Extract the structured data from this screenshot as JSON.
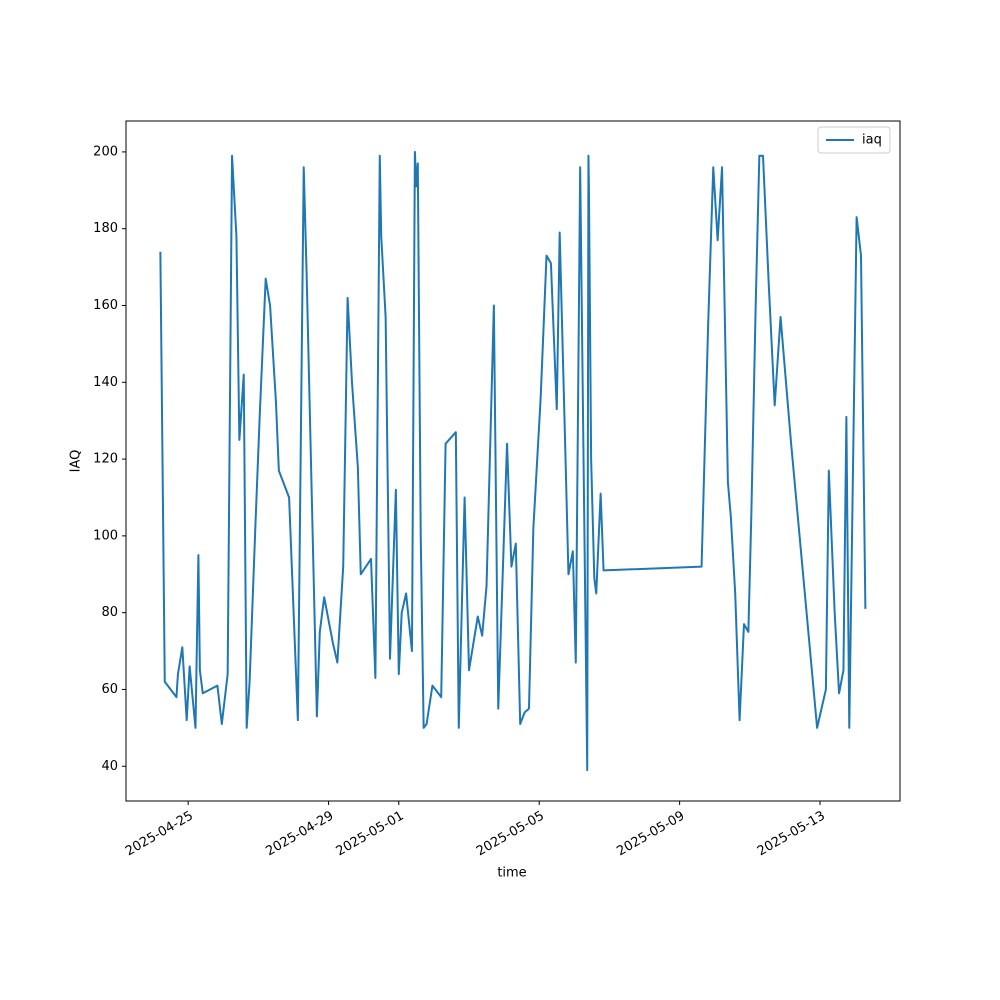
{
  "chart_data": {
    "type": "line",
    "xlabel": "time",
    "ylabel": "IAQ",
    "legend": "upper right",
    "xlim": [
      "2025-04-23T05:30",
      "2025-05-15T06:40"
    ],
    "xticks": [
      "2025-04-25",
      "2025-04-29",
      "2025-05-01",
      "2025-05-05",
      "2025-05-09",
      "2025-05-13"
    ],
    "ylim": [
      30.95,
      208.05
    ],
    "yticks": [
      40,
      60,
      80,
      100,
      120,
      140,
      160,
      180,
      200
    ],
    "x": [
      "2025-04-24T05:00",
      "2025-04-24T08:00",
      "2025-04-24T16:00",
      "2025-04-24T17:00",
      "2025-04-24T20:00",
      "2025-04-24T23:00",
      "2025-04-25T01:00",
      "2025-04-25T05:00",
      "2025-04-25T07:00",
      "2025-04-25T08:00",
      "2025-04-25T10:00",
      "2025-04-25T20:00",
      "2025-04-25T23:00",
      "2025-04-26T03:00",
      "2025-04-26T06:00",
      "2025-04-26T09:00",
      "2025-04-26T11:00",
      "2025-04-26T14:00",
      "2025-04-26T16:00",
      "2025-04-26T18:00",
      "2025-04-26T22:00",
      "2025-04-27T01:00",
      "2025-04-27T05:00",
      "2025-04-27T08:00",
      "2025-04-27T12:00",
      "2025-04-27T14:00",
      "2025-04-27T21:00",
      "2025-04-28T03:00",
      "2025-04-28T07:00",
      "2025-04-28T09:00",
      "2025-04-28T16:00",
      "2025-04-28T18:00",
      "2025-04-28T21:00",
      "2025-04-29T03:00",
      "2025-04-29T06:00",
      "2025-04-29T10:00",
      "2025-04-29T13:00",
      "2025-04-29T16:00",
      "2025-04-29T20:00",
      "2025-04-29T22:00",
      "2025-04-30T05:00",
      "2025-04-30T08:00",
      "2025-04-30T11:00",
      "2025-04-30T12:00",
      "2025-04-30T15:00",
      "2025-04-30T18:00",
      "2025-04-30T22:00",
      "2025-05-01T00:00",
      "2025-05-01T02:00",
      "2025-05-01T05:00",
      "2025-05-01T09:00",
      "2025-05-01T11:00",
      "2025-05-01T12:00",
      "2025-05-01T13:00",
      "2025-05-01T15:00",
      "2025-05-01T17:00",
      "2025-05-01T19:00",
      "2025-05-01T23:00",
      "2025-05-02T05:00",
      "2025-05-02T08:00",
      "2025-05-02T15:00",
      "2025-05-02T17:00",
      "2025-05-02T21:00",
      "2025-05-03T00:00",
      "2025-05-03T06:00",
      "2025-05-03T09:00",
      "2025-05-03T12:00",
      "2025-05-03T17:00",
      "2025-05-03T20:00",
      "2025-05-04T02:00",
      "2025-05-04T05:00",
      "2025-05-04T08:00",
      "2025-05-04T11:00",
      "2025-05-04T14:00",
      "2025-05-04T17:00",
      "2025-05-04T20:00",
      "2025-05-05T01:00",
      "2025-05-05T05:00",
      "2025-05-05T08:00",
      "2025-05-05T12:00",
      "2025-05-05T14:00",
      "2025-05-05T18:00",
      "2025-05-05T20:00",
      "2025-05-05T23:00",
      "2025-05-06T01:00",
      "2025-05-06T04:00",
      "2025-05-06T06:00",
      "2025-05-06T08:50",
      "2025-05-06T09:40",
      "2025-05-06T10:00",
      "2025-05-06T11:30",
      "2025-05-06T13:40",
      "2025-05-06T15:00",
      "2025-05-06T18:00",
      "2025-05-06T20:00",
      "2025-05-09T15:00",
      "2025-05-09T19:30",
      "2025-05-09T23:00",
      "2025-05-10T02:00",
      "2025-05-10T05:00",
      "2025-05-10T09:00",
      "2025-05-10T11:00",
      "2025-05-10T14:00",
      "2025-05-10T17:00",
      "2025-05-10T20:00",
      "2025-05-10T23:00",
      "2025-05-11T01:00",
      "2025-05-11T04:00",
      "2025-05-11T06:30",
      "2025-05-11T09:00",
      "2025-05-11T13:00",
      "2025-05-11T17:00",
      "2025-05-11T21:00",
      "2025-05-12T04:00",
      "2025-05-12T22:00",
      "2025-05-13T04:00",
      "2025-05-13T06:00",
      "2025-05-13T10:00",
      "2025-05-13T13:00",
      "2025-05-13T16:00",
      "2025-05-13T18:00",
      "2025-05-13T20:00",
      "2025-05-13T23:00",
      "2025-05-14T01:00",
      "2025-05-14T04:00",
      "2025-05-14T07:00"
    ],
    "series": [
      {
        "name": "iaq",
        "color": "#1f77b4",
        "values": [
          174,
          62,
          58,
          64,
          71,
          52,
          66,
          50,
          95,
          65,
          59,
          61,
          51,
          64,
          199,
          178,
          125,
          142,
          50,
          62,
          103,
          132,
          167,
          160,
          135,
          117,
          110,
          52,
          196,
          168,
          53,
          75,
          84,
          72,
          67,
          92,
          162,
          140,
          118,
          90,
          94,
          63,
          199,
          178,
          157,
          68,
          112,
          64,
          80,
          85,
          70,
          200,
          191,
          197,
          100,
          50,
          51,
          61,
          58,
          124,
          127,
          50,
          110,
          65,
          79,
          74,
          87,
          160,
          55,
          124,
          92,
          98,
          51,
          54,
          55,
          102,
          136,
          173,
          171,
          133,
          179,
          120,
          90,
          96,
          67,
          196,
          130,
          39,
          199,
          190,
          120,
          89,
          85,
          111,
          91,
          92,
          155,
          196,
          177,
          196,
          114,
          105,
          85,
          52,
          77,
          75,
          105,
          160,
          199,
          199,
          165,
          134,
          157,
          125,
          50,
          60,
          117,
          80,
          59,
          65,
          131,
          50,
          130,
          183,
          173,
          81
        ]
      }
    ]
  }
}
